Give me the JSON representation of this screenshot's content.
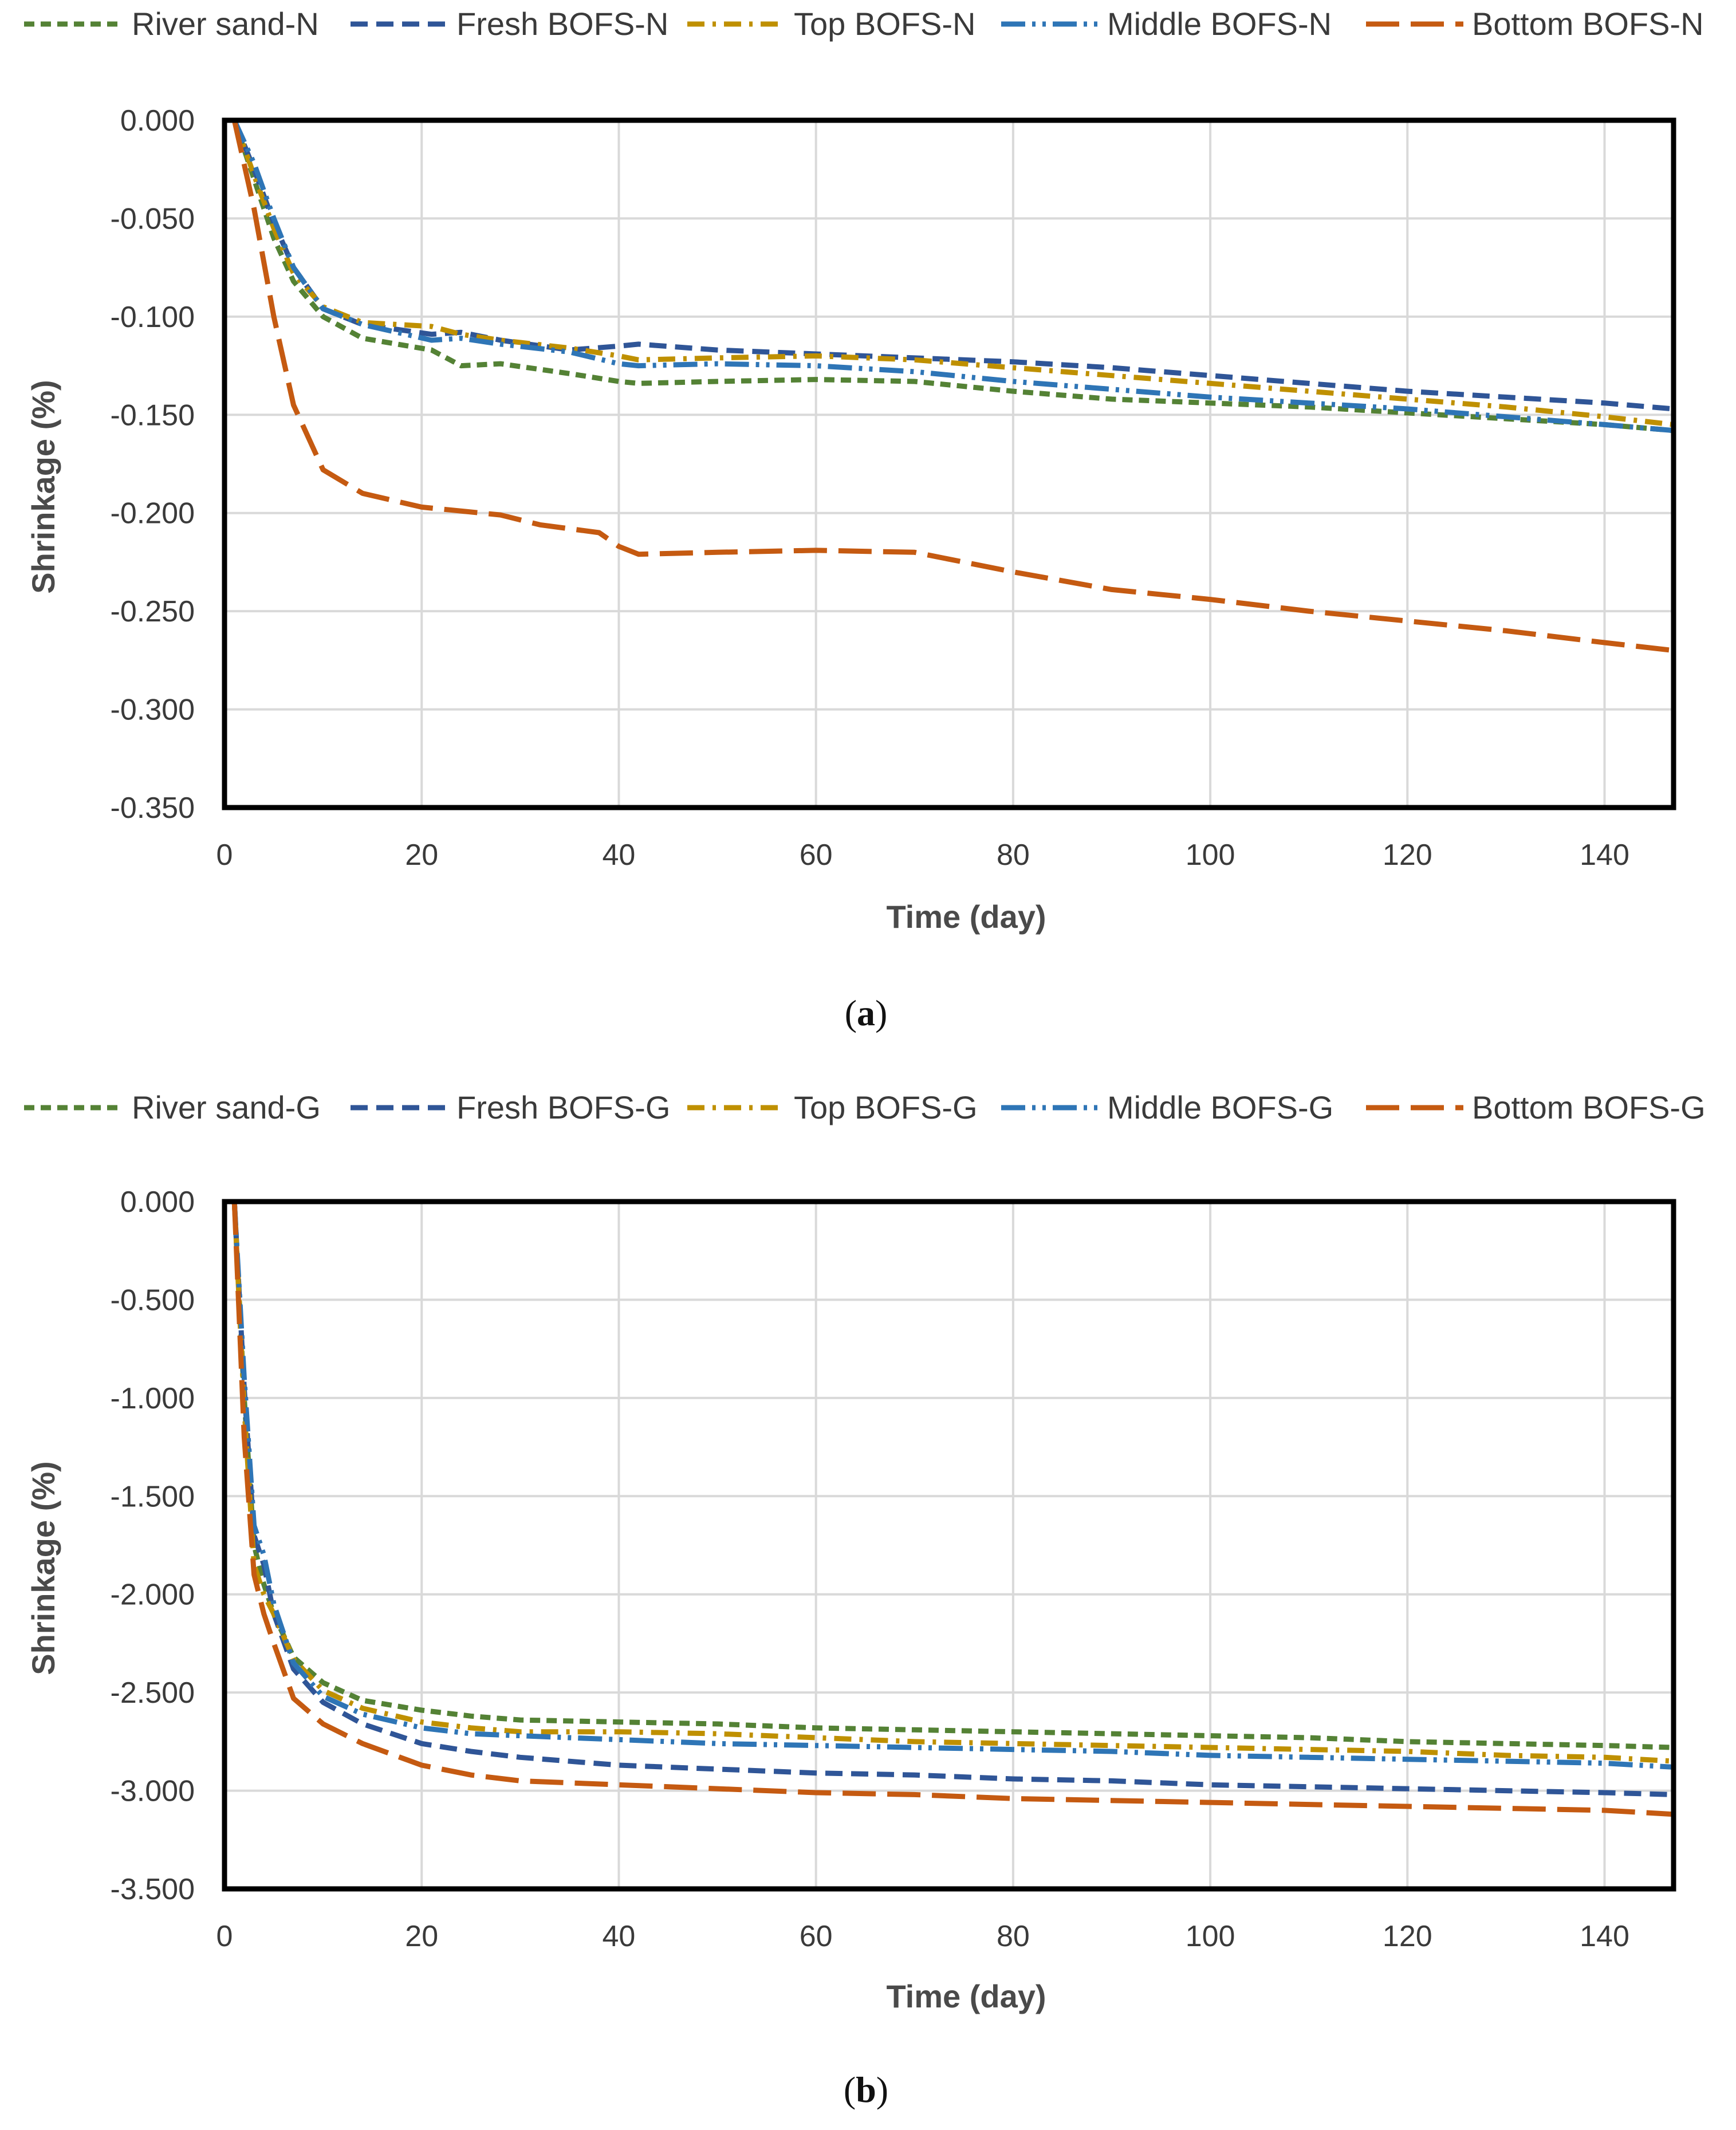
{
  "chart_data": [
    {
      "type": "line",
      "panel_label": "a",
      "xlabel": "Time (day)",
      "ylabel": "Shrinkage (%)",
      "xlim": [
        0,
        147
      ],
      "ylim": [
        -0.35,
        0.0
      ],
      "xticks": [
        "0",
        "20",
        "40",
        "60",
        "80",
        "100",
        "120",
        "140"
      ],
      "xtick_values": [
        0,
        20,
        40,
        60,
        80,
        100,
        120,
        140
      ],
      "yticks": [
        "0.000",
        "-0.050",
        "-0.100",
        "-0.150",
        "-0.200",
        "-0.250",
        "-0.300",
        "-0.350"
      ],
      "ytick_values": [
        0,
        -0.05,
        -0.1,
        -0.15,
        -0.2,
        -0.25,
        -0.3,
        -0.35
      ],
      "grid": true,
      "legend_position": "top",
      "series": [
        {
          "name": "River sand-N",
          "color": "#548235",
          "dash": "short-dash",
          "x": [
            1,
            3,
            5,
            7,
            10,
            14,
            21,
            24,
            28,
            35,
            40,
            42,
            50,
            60,
            70,
            80,
            90,
            100,
            110,
            120,
            130,
            140,
            147
          ],
          "y": [
            0.0,
            -0.03,
            -0.06,
            -0.082,
            -0.1,
            -0.111,
            -0.117,
            -0.125,
            -0.124,
            -0.129,
            -0.133,
            -0.134,
            -0.133,
            -0.132,
            -0.133,
            -0.138,
            -0.142,
            -0.144,
            -0.146,
            -0.149,
            -0.152,
            -0.155,
            -0.158
          ]
        },
        {
          "name": "Fresh BOFS-N",
          "color": "#2F5597",
          "dash": "medium-dash",
          "x": [
            1,
            3,
            5,
            7,
            10,
            14,
            21,
            24,
            28,
            35,
            40,
            42,
            50,
            60,
            70,
            80,
            90,
            100,
            110,
            120,
            130,
            140,
            147
          ],
          "y": [
            0.0,
            -0.025,
            -0.052,
            -0.075,
            -0.096,
            -0.104,
            -0.109,
            -0.108,
            -0.112,
            -0.117,
            -0.115,
            -0.114,
            -0.117,
            -0.119,
            -0.121,
            -0.123,
            -0.126,
            -0.13,
            -0.134,
            -0.138,
            -0.141,
            -0.144,
            -0.147
          ]
        },
        {
          "name": "Top BOFS-N",
          "color": "#BF9000",
          "dash": "dash-dot",
          "x": [
            1,
            3,
            5,
            7,
            10,
            14,
            21,
            24,
            28,
            35,
            40,
            42,
            50,
            60,
            70,
            80,
            90,
            100,
            110,
            120,
            130,
            140,
            147
          ],
          "y": [
            0.0,
            -0.028,
            -0.055,
            -0.078,
            -0.095,
            -0.103,
            -0.105,
            -0.109,
            -0.112,
            -0.116,
            -0.12,
            -0.122,
            -0.121,
            -0.12,
            -0.122,
            -0.126,
            -0.13,
            -0.134,
            -0.138,
            -0.142,
            -0.146,
            -0.151,
            -0.155
          ]
        },
        {
          "name": "Middle BOFS-N",
          "color": "#2E75B6",
          "dash": "long-dash-dot-dot",
          "x": [
            1,
            3,
            5,
            7,
            10,
            14,
            21,
            24,
            28,
            35,
            40,
            42,
            50,
            60,
            70,
            80,
            90,
            100,
            110,
            120,
            130,
            140,
            147
          ],
          "y": [
            0.0,
            -0.022,
            -0.05,
            -0.075,
            -0.096,
            -0.104,
            -0.112,
            -0.111,
            -0.114,
            -0.118,
            -0.124,
            -0.125,
            -0.124,
            -0.125,
            -0.128,
            -0.133,
            -0.137,
            -0.141,
            -0.144,
            -0.147,
            -0.151,
            -0.155,
            -0.158
          ]
        },
        {
          "name": "Bottom BOFS-N",
          "color": "#C55A11",
          "dash": "long-dash",
          "x": [
            1,
            3,
            5,
            7,
            10,
            14,
            20,
            28,
            32,
            38,
            40,
            42,
            50,
            60,
            70,
            80,
            90,
            100,
            110,
            120,
            130,
            140,
            147
          ],
          "y": [
            0.0,
            -0.045,
            -0.1,
            -0.145,
            -0.178,
            -0.19,
            -0.197,
            -0.201,
            -0.206,
            -0.21,
            -0.217,
            -0.221,
            -0.22,
            -0.219,
            -0.22,
            -0.23,
            -0.239,
            -0.244,
            -0.25,
            -0.255,
            -0.26,
            -0.266,
            -0.27
          ]
        }
      ]
    },
    {
      "type": "line",
      "panel_label": "b",
      "xlabel": "Time (day)",
      "ylabel": "Shrinkage (%)",
      "xlim": [
        0,
        147
      ],
      "ylim": [
        -3.5,
        0.0
      ],
      "xticks": [
        "0",
        "20",
        "40",
        "60",
        "80",
        "100",
        "120",
        "140"
      ],
      "xtick_values": [
        0,
        20,
        40,
        60,
        80,
        100,
        120,
        140
      ],
      "yticks": [
        "0.000",
        "-0.500",
        "-1.000",
        "-1.500",
        "-2.000",
        "-2.500",
        "-3.000",
        "-3.500"
      ],
      "ytick_values": [
        0,
        -0.5,
        -1.0,
        -1.5,
        -2.0,
        -2.5,
        -3.0,
        -3.5
      ],
      "grid": true,
      "legend_position": "top",
      "series": [
        {
          "name": "River sand-G",
          "color": "#548235",
          "dash": "short-dash",
          "x": [
            1,
            2,
            3,
            4,
            5,
            7,
            10,
            14,
            20,
            25,
            30,
            40,
            50,
            60,
            70,
            80,
            90,
            100,
            110,
            120,
            130,
            140,
            147
          ],
          "y": [
            0.0,
            -1.0,
            -1.75,
            -1.95,
            -2.1,
            -2.32,
            -2.45,
            -2.54,
            -2.59,
            -2.62,
            -2.64,
            -2.65,
            -2.66,
            -2.68,
            -2.69,
            -2.7,
            -2.71,
            -2.72,
            -2.73,
            -2.75,
            -2.76,
            -2.77,
            -2.78
          ]
        },
        {
          "name": "Fresh BOFS-G",
          "color": "#2F5597",
          "dash": "medium-dash",
          "x": [
            1,
            2,
            3,
            4,
            5,
            7,
            10,
            14,
            20,
            25,
            30,
            40,
            50,
            60,
            70,
            80,
            90,
            100,
            110,
            120,
            130,
            140,
            147
          ],
          "y": [
            0.0,
            -0.95,
            -1.7,
            -1.85,
            -2.1,
            -2.38,
            -2.55,
            -2.66,
            -2.76,
            -2.8,
            -2.83,
            -2.87,
            -2.89,
            -2.91,
            -2.92,
            -2.94,
            -2.95,
            -2.97,
            -2.98,
            -2.99,
            -3.0,
            -3.01,
            -3.02
          ]
        },
        {
          "name": "Top BOFS-G",
          "color": "#BF9000",
          "dash": "dash-dot",
          "x": [
            1,
            2,
            3,
            4,
            5,
            7,
            10,
            14,
            20,
            25,
            30,
            40,
            50,
            60,
            70,
            80,
            90,
            100,
            110,
            120,
            130,
            140,
            147
          ],
          "y": [
            0.0,
            -1.05,
            -1.85,
            -2.0,
            -2.1,
            -2.33,
            -2.49,
            -2.58,
            -2.65,
            -2.68,
            -2.7,
            -2.7,
            -2.71,
            -2.73,
            -2.75,
            -2.76,
            -2.77,
            -2.78,
            -2.79,
            -2.8,
            -2.82,
            -2.83,
            -2.85
          ]
        },
        {
          "name": "Middle BOFS-G",
          "color": "#2E75B6",
          "dash": "long-dash-dot-dot",
          "x": [
            1,
            2,
            3,
            4,
            5,
            7,
            10,
            14,
            20,
            25,
            30,
            40,
            50,
            60,
            70,
            80,
            90,
            100,
            110,
            120,
            130,
            140,
            147
          ],
          "y": [
            0.0,
            -0.9,
            -1.65,
            -1.8,
            -2.05,
            -2.35,
            -2.52,
            -2.61,
            -2.68,
            -2.71,
            -2.72,
            -2.74,
            -2.76,
            -2.77,
            -2.78,
            -2.79,
            -2.8,
            -2.82,
            -2.83,
            -2.84,
            -2.85,
            -2.86,
            -2.88
          ]
        },
        {
          "name": "Bottom BOFS-G",
          "color": "#C55A11",
          "dash": "long-dash",
          "x": [
            1,
            2,
            3,
            4,
            5,
            7,
            10,
            14,
            20,
            25,
            30,
            40,
            50,
            60,
            70,
            80,
            90,
            100,
            110,
            120,
            130,
            140,
            147
          ],
          "y": [
            0.0,
            -1.2,
            -1.9,
            -2.1,
            -2.25,
            -2.53,
            -2.66,
            -2.76,
            -2.87,
            -2.92,
            -2.95,
            -2.97,
            -2.99,
            -3.01,
            -3.02,
            -3.04,
            -3.05,
            -3.06,
            -3.07,
            -3.08,
            -3.09,
            -3.1,
            -3.12
          ]
        }
      ]
    }
  ]
}
